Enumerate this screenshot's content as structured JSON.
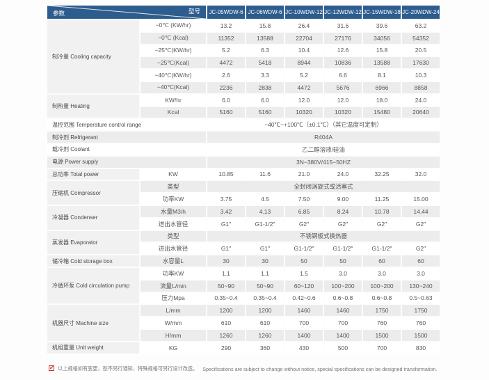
{
  "colors": {
    "header_bg": "#2d5c8e",
    "stripe_gray": "#ececec",
    "group_label_bg": "#f1f1f1",
    "check_red": "#c03030"
  },
  "table": {
    "corner": {
      "param_label": "参数",
      "model_label": "型号"
    },
    "models": [
      "JC-05WDW-6",
      "JC-06WDW-6",
      "JC-10WDW-12",
      "JC-12WDW-12",
      "JC-15WDW-18",
      "JC-20WDW-24"
    ],
    "rows": [
      {
        "kind": "data",
        "group": "制冷量 Cooling capacity",
        "span": 6,
        "sub": "−0℃ (KW/hr)",
        "values": [
          "13.2",
          "15.8",
          "26.4",
          "31.6",
          "39.6",
          "63.2"
        ]
      },
      {
        "kind": "data",
        "sub": "−0℃ (Kcal)",
        "values": [
          "11352",
          "13588",
          "22704",
          "27176",
          "34056",
          "54352"
        ]
      },
      {
        "kind": "data",
        "sub": "−25℃(KW/hr)",
        "values": [
          "5.2",
          "6.3",
          "10.4",
          "12.6",
          "15.8",
          "20.5"
        ]
      },
      {
        "kind": "data",
        "sub": "−25℃(Kcal)",
        "values": [
          "4472",
          "5418",
          "8944",
          "10836",
          "13588",
          "17630"
        ]
      },
      {
        "kind": "data",
        "sub": "−40℃(KW/hr)",
        "values": [
          "2.6",
          "3.3",
          "5.2",
          "6.6",
          "8.1",
          "10.3"
        ]
      },
      {
        "kind": "data",
        "sub": "−40℃(Kcal)",
        "values": [
          "2236",
          "2838",
          "4472",
          "5676",
          "6966",
          "8858"
        ]
      },
      {
        "kind": "data",
        "group": "制热量 Heating",
        "span": 2,
        "sub": "KW/hr",
        "values": [
          "6.0",
          "6.0",
          "12.0",
          "12.0",
          "18.0",
          "24.0"
        ]
      },
      {
        "kind": "data",
        "sub": "Kcal",
        "values": [
          "5160",
          "5160",
          "10320",
          "10320",
          "15480",
          "20640"
        ]
      },
      {
        "kind": "wide",
        "label": "温控范围 Temperature control range",
        "value": "−40℃~+100℃（±0.1℃）（其它温度可定制）"
      },
      {
        "kind": "wide",
        "label": "制冷剂 Refrigerant",
        "value": "R404A"
      },
      {
        "kind": "wide",
        "label": "载冷剂 Coolant",
        "value": "乙二醇溶液/硅油"
      },
      {
        "kind": "wide",
        "label": "电源 Power supply",
        "value": "3N−380V/415−50HZ"
      },
      {
        "kind": "data",
        "group": "总功率 Total power",
        "span": 1,
        "sub": "KW",
        "values": [
          "10.85",
          "11.6",
          "21.0",
          "24.0",
          "32.25",
          "32.0"
        ]
      },
      {
        "kind": "merged",
        "group": "压缩机 Compressor",
        "span": 2,
        "sub": "类型",
        "value": "全封闭涡旋式或活塞式"
      },
      {
        "kind": "data",
        "sub": "功率KW",
        "values": [
          "3.75",
          "4.5",
          "7.50",
          "9.00",
          "11.25",
          "15.00"
        ]
      },
      {
        "kind": "data",
        "group": "冷凝器 Condenser",
        "span": 2,
        "sub": "水量M3/h",
        "values": [
          "3.42",
          "4.13",
          "6.85",
          "8.24",
          "10.78",
          "14.44"
        ]
      },
      {
        "kind": "data",
        "sub": "进出水管径",
        "values": [
          "G1″",
          "G1-1/2″",
          "G2″",
          "G2″",
          "G2″",
          "G2″"
        ]
      },
      {
        "kind": "merged",
        "group": "蒸发器 Evaporator",
        "span": 2,
        "sub": "类型",
        "value": "不锈钢板式换热器"
      },
      {
        "kind": "data",
        "sub": "进出水管径",
        "values": [
          "G1″",
          "G1″",
          "G1-1/2″",
          "G1-1/2″",
          "G1-1/2″",
          "G2″"
        ]
      },
      {
        "kind": "data",
        "group": "储冷箱 Cold storage box",
        "span": 1,
        "sub": "水容量L",
        "values": [
          "30",
          "30",
          "50",
          "50",
          "60",
          "60"
        ]
      },
      {
        "kind": "data",
        "group": "冷循环泵 Cold circulation pump",
        "span": 3,
        "sub": "功率KW",
        "values": [
          "1.1",
          "1.1",
          "1.5",
          "3.0",
          "3.0",
          "3.0"
        ]
      },
      {
        "kind": "data",
        "sub": "流量L/min",
        "values": [
          "50~90",
          "50~90",
          "60~120",
          "100~200",
          "100~200",
          "130~240"
        ]
      },
      {
        "kind": "data",
        "sub": "压力Mpa",
        "values": [
          "0.35~0.4",
          "0.35~0.4",
          "0.42~0.6",
          "0.6~0.8",
          "0.6~0.8",
          "0.5~0.63"
        ]
      },
      {
        "kind": "data",
        "group": "机器尺寸 Machine size",
        "span": 3,
        "sub": "L/mm",
        "values": [
          "1200",
          "1200",
          "1460",
          "1460",
          "1750",
          "1750"
        ]
      },
      {
        "kind": "data",
        "sub": "W/mm",
        "values": [
          "610",
          "610",
          "700",
          "700",
          "760",
          "760"
        ]
      },
      {
        "kind": "data",
        "sub": "H/mm",
        "values": [
          "1260",
          "1260",
          "1400",
          "1400",
          "1500",
          "1500"
        ]
      },
      {
        "kind": "data",
        "group": "机组重量 Unit weight",
        "span": 1,
        "sub": "KG",
        "values": [
          "290",
          "360",
          "430",
          "500",
          "700",
          "830"
        ]
      }
    ]
  },
  "footnote": {
    "check_glyph": "✔",
    "zh": "以上规格如有变更，恕不另行通知，特殊规格可另行设计改造。",
    "en": "Specifications are subject to change without notice, special specifications can be designed transformation."
  }
}
